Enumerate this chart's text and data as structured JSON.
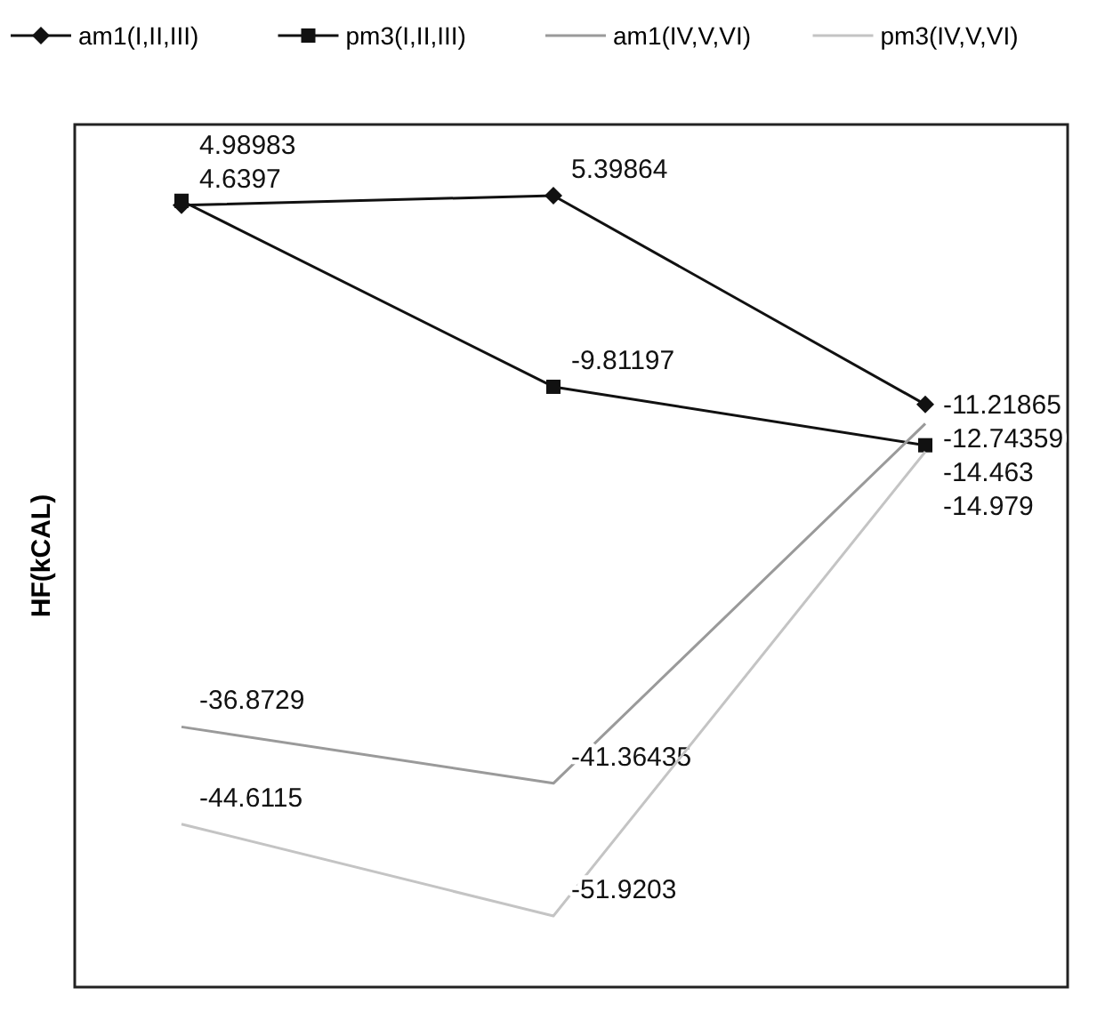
{
  "chart_data": {
    "type": "line",
    "ylabel": "HF(kCAL)",
    "categories": [
      null,
      null,
      null
    ],
    "series": [
      {
        "name": "am1(I,II,III)",
        "color": "#111111",
        "values": [
          4.6397,
          5.39864,
          -11.21865
        ],
        "marker": "diamond"
      },
      {
        "name": "pm3(I,II,III)",
        "color": "#111111",
        "values": [
          4.98983,
          -9.81197,
          -14.463
        ],
        "marker": "square"
      },
      {
        "name": "am1(IV,V,VI)",
        "color": "#9a9a9a",
        "values": [
          -36.8729,
          -41.36435,
          -12.74359
        ],
        "marker": "none"
      },
      {
        "name": "pm3(IV,V,VI)",
        "color": "#c4c4c4",
        "values": [
          -44.6115,
          -51.9203,
          -14.979
        ],
        "marker": "none"
      }
    ],
    "data_labels": true,
    "legend": "top",
    "line_style": "solid"
  }
}
